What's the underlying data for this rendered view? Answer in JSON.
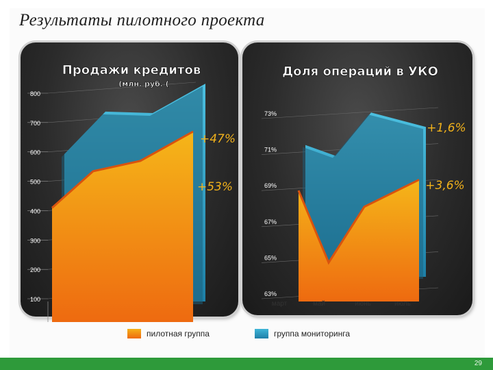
{
  "page": {
    "title": "Результаты пилотного проекта",
    "page_number": "29"
  },
  "legend": {
    "pilot": "пилотная группа",
    "monitoring": "группа мониторинга"
  },
  "colors": {
    "pilot": "#f29a17",
    "monitoring": "#3aa7cc",
    "band": "#2e9a3a"
  },
  "chart_data": [
    {
      "type": "area",
      "title": "Продажи кредитов",
      "subtitle": "(млн. руб. (",
      "yticks": [
        "800",
        "700",
        "600",
        "500",
        "400",
        "300",
        "200",
        "100"
      ],
      "ylim": [
        100,
        800
      ],
      "x": [
        1,
        2,
        3,
        4
      ],
      "series": [
        {
          "name": "группа мониторинга",
          "values": [
            555,
            700,
            695,
            795
          ]
        },
        {
          "name": "пилотная группа",
          "values": [
            400,
            525,
            560,
            660
          ]
        }
      ],
      "annotations": [
        {
          "text": "+47%"
        },
        {
          "text": "+53%"
        }
      ]
    },
    {
      "type": "area",
      "title": "Доля операций в УКО",
      "yticks": [
        "73%",
        "71%",
        "69%",
        "67%",
        "65%",
        "63%"
      ],
      "ylim": [
        63,
        73
      ],
      "categories": [
        "март",
        "май",
        "июнь",
        "июль"
      ],
      "series": [
        {
          "name": "группа мониторинга",
          "values": [
            71.0,
            70.4,
            72.8,
            72.0
          ]
        },
        {
          "name": "пилотная группа",
          "values": [
            68.7,
            64.7,
            67.8,
            69.3
          ]
        }
      ],
      "annotations": [
        {
          "text": "+1,6%"
        },
        {
          "text": "+3,6%"
        }
      ]
    }
  ]
}
